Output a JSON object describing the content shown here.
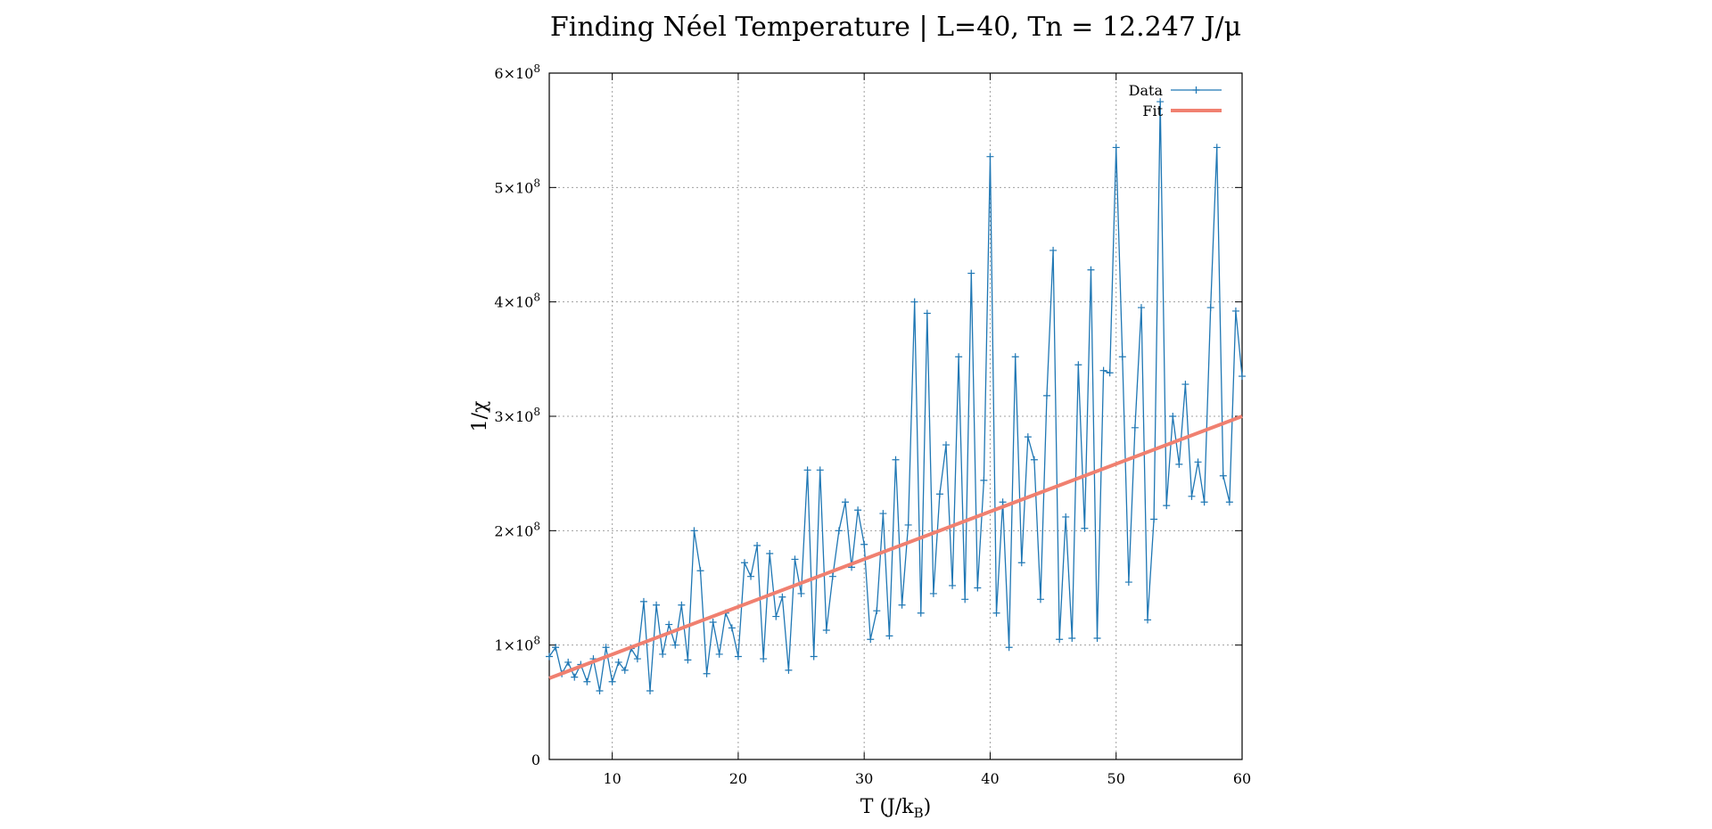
{
  "chart_data": {
    "type": "line",
    "title": "Finding Néel Temperature | L=40, Tn = 12.247 J/μ",
    "xlabel_main": "T (J/k",
    "xlabel_sub": "B",
    "xlabel_close": ")",
    "ylabel": "1/χ",
    "xlim": [
      5,
      60
    ],
    "ylim": [
      0,
      600000000
    ],
    "x_ticks": [
      10,
      20,
      30,
      40,
      50,
      60
    ],
    "y_ticks": [
      {
        "value": 0,
        "label": "0"
      },
      {
        "value": 100000000,
        "label": "1×10",
        "exp": "8"
      },
      {
        "value": 200000000,
        "label": "2×10",
        "exp": "8"
      },
      {
        "value": 300000000,
        "label": "3×10",
        "exp": "8"
      },
      {
        "value": 400000000,
        "label": "4×10",
        "exp": "8"
      },
      {
        "value": 500000000,
        "label": "5×10",
        "exp": "8"
      },
      {
        "value": 600000000,
        "label": "6×10",
        "exp": "8"
      }
    ],
    "grid": true,
    "legend_position": "top-right",
    "series": [
      {
        "name": "Data",
        "style": "line-points",
        "color": "#1f77b4",
        "x": [
          5,
          5.5,
          6,
          6.5,
          7,
          7.5,
          8,
          8.5,
          9,
          9.5,
          10,
          10.5,
          11,
          11.5,
          12,
          12.5,
          13,
          13.5,
          14,
          14.5,
          15,
          15.5,
          16,
          16.5,
          17,
          17.5,
          18,
          18.5,
          19,
          19.5,
          20,
          20.5,
          21,
          21.5,
          22,
          22.5,
          23,
          23.5,
          24,
          24.5,
          25,
          25.5,
          26,
          26.5,
          27,
          27.5,
          28,
          28.5,
          29,
          29.5,
          30,
          30.5,
          31,
          31.5,
          32,
          32.5,
          33,
          33.5,
          34,
          34.5,
          35,
          35.5,
          36,
          36.5,
          37,
          37.5,
          38,
          38.5,
          39,
          39.5,
          40,
          40.5,
          41,
          41.5,
          42,
          42.5,
          43,
          43.5,
          44,
          44.5,
          45,
          45.5,
          46,
          46.5,
          47,
          47.5,
          48,
          48.5,
          49,
          49.5,
          50,
          50.5,
          51,
          51.5,
          52,
          52.5,
          53,
          53.5,
          54,
          54.5,
          55,
          55.5,
          56,
          56.5,
          57,
          57.5,
          58,
          58.5,
          59,
          59.5,
          60
        ],
        "y": [
          90000000,
          98000000,
          75000000,
          85000000,
          72000000,
          83000000,
          68000000,
          88000000,
          60000000,
          98000000,
          68000000,
          85000000,
          78000000,
          97000000,
          88000000,
          138000000,
          60000000,
          135000000,
          92000000,
          118000000,
          100000000,
          135000000,
          87000000,
          200000000,
          165000000,
          75000000,
          120000000,
          92000000,
          128000000,
          115000000,
          90000000,
          172000000,
          160000000,
          187000000,
          88000000,
          180000000,
          125000000,
          142000000,
          78000000,
          175000000,
          145000000,
          253000000,
          90000000,
          253000000,
          113000000,
          160000000,
          200000000,
          225000000,
          168000000,
          218000000,
          188000000,
          105000000,
          130000000,
          215000000,
          108000000,
          262000000,
          135000000,
          205000000,
          400000000,
          128000000,
          390000000,
          145000000,
          232000000,
          275000000,
          152000000,
          352000000,
          140000000,
          425000000,
          150000000,
          244000000,
          527000000,
          128000000,
          225000000,
          98000000,
          352000000,
          172000000,
          282000000,
          262000000,
          140000000,
          318000000,
          445000000,
          105000000,
          212000000,
          106000000,
          345000000,
          202000000,
          428000000,
          106000000,
          340000000,
          338000000,
          535000000,
          352000000,
          155000000,
          290000000,
          395000000,
          122000000,
          210000000,
          575000000,
          222000000,
          300000000,
          258000000,
          328000000,
          230000000,
          260000000,
          225000000,
          395000000,
          535000000,
          248000000,
          225000000,
          392000000,
          335000000
        ]
      },
      {
        "name": "Fit",
        "style": "line",
        "color": "#f08070",
        "x": [
          5,
          60
        ],
        "y": [
          71000000,
          300000000
        ]
      }
    ]
  }
}
